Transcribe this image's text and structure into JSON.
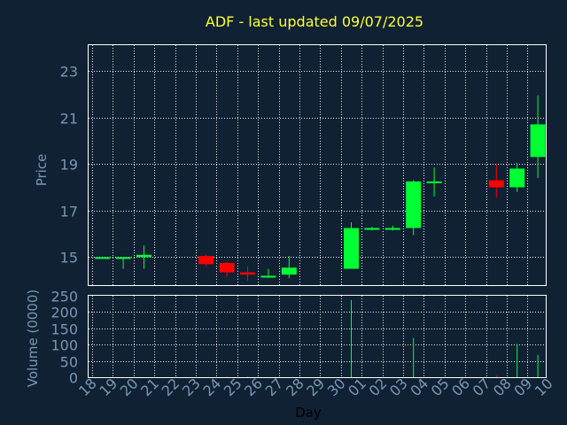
{
  "chart_data": {
    "type": "candlestick",
    "title": "ADF - last updated 09/07/2025",
    "xlabel": "Day",
    "ylabel_price": "Price",
    "ylabel_volume": "Volume (0000)",
    "x_ticks": [
      "18",
      "19",
      "20",
      "21",
      "22",
      "23",
      "24",
      "25",
      "26",
      "27",
      "28",
      "29",
      "30",
      "01",
      "02",
      "03",
      "04",
      "05",
      "06",
      "07",
      "08",
      "09",
      "10"
    ],
    "price_ticks": [
      15,
      17,
      19,
      21,
      23
    ],
    "price_ylim": [
      13.8,
      24.1
    ],
    "volume_ticks": [
      0,
      50,
      100,
      150,
      200,
      250
    ],
    "volume_ylim": [
      0,
      250
    ],
    "grid": true,
    "colors": {
      "background": "#0f2133",
      "up": "#00ff33",
      "down": "#ff0000",
      "title": "#ffff33",
      "tick": "#7a97b3",
      "grid": "#ffffff"
    },
    "candles": [
      {
        "day": "18",
        "open": 15.0,
        "close": 15.0,
        "high": 15.0,
        "low": 15.0,
        "volume": 0
      },
      {
        "day": "19",
        "open": 14.95,
        "close": 15.0,
        "high": 15.0,
        "low": 14.5,
        "volume": 0
      },
      {
        "day": "20",
        "open": 15.0,
        "close": 15.1,
        "high": 15.5,
        "low": 14.5,
        "volume": 0
      },
      {
        "day": "23",
        "open": 15.05,
        "close": 14.7,
        "high": 15.1,
        "low": 14.6,
        "volume": 0
      },
      {
        "day": "24",
        "open": 14.75,
        "close": 14.35,
        "high": 14.8,
        "low": 14.15,
        "volume": 3
      },
      {
        "day": "25",
        "open": 14.35,
        "close": 14.25,
        "high": 14.6,
        "low": 14.0,
        "volume": 2
      },
      {
        "day": "26",
        "open": 14.15,
        "close": 14.2,
        "high": 14.5,
        "low": 14.1,
        "volume": 0
      },
      {
        "day": "27",
        "open": 14.25,
        "close": 14.55,
        "high": 15.05,
        "low": 14.1,
        "volume": 0
      },
      {
        "day": "30",
        "open": 14.5,
        "close": 16.25,
        "high": 16.5,
        "low": 14.5,
        "volume": 237
      },
      {
        "day": "01",
        "open": 16.2,
        "close": 16.25,
        "high": 16.3,
        "low": 16.15,
        "volume": 0
      },
      {
        "day": "02",
        "open": 16.2,
        "close": 16.25,
        "high": 16.35,
        "low": 16.15,
        "volume": 0
      },
      {
        "day": "03",
        "open": 16.25,
        "close": 18.25,
        "high": 18.3,
        "low": 15.95,
        "volume": 120
      },
      {
        "day": "04",
        "open": 18.2,
        "close": 18.25,
        "high": 18.85,
        "low": 17.6,
        "volume": 0
      },
      {
        "day": "07",
        "open": 18.3,
        "close": 18.0,
        "high": 19.0,
        "low": 17.55,
        "volume": 5
      },
      {
        "day": "08",
        "open": 18.0,
        "close": 18.8,
        "high": 19.05,
        "low": 17.8,
        "volume": 102
      },
      {
        "day": "09",
        "open": 19.3,
        "close": 20.7,
        "high": 21.95,
        "low": 18.4,
        "volume": 68
      }
    ]
  }
}
